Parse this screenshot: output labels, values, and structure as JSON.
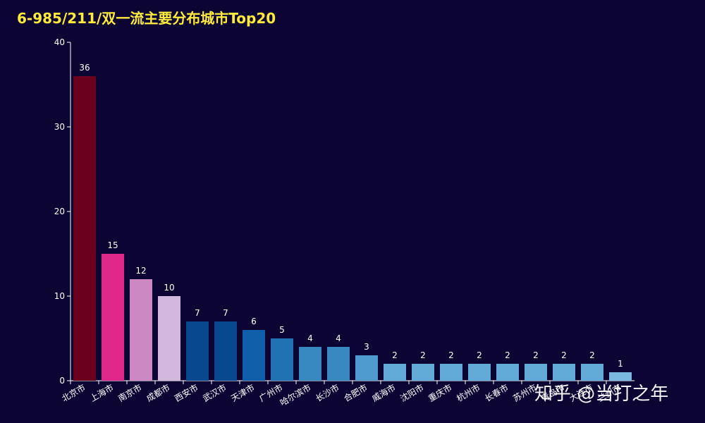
{
  "chart_data": {
    "type": "bar",
    "title": "6-985/211/双一流主要分布城市Top20",
    "xlabel": "",
    "ylabel": "",
    "ylim": [
      0,
      40
    ],
    "yticks": [
      0,
      10,
      20,
      30,
      40
    ],
    "grid": false,
    "legend": "none",
    "categories": [
      "北京市",
      "上海市",
      "南京市",
      "成都市",
      "西安市",
      "武汉市",
      "天津市",
      "广州市",
      "哈尔滨市",
      "长沙市",
      "合肥市",
      "威海市",
      "沈阳市",
      "重庆市",
      "杭州市",
      "长春市",
      "苏州市",
      "青岛市",
      "大连市",
      "兰州市"
    ],
    "values": [
      36,
      15,
      12,
      10,
      7,
      7,
      6,
      5,
      4,
      4,
      3,
      2,
      2,
      2,
      2,
      2,
      2,
      2,
      2,
      1
    ],
    "colors": [
      "#6a001d",
      "#e0288a",
      "#cc88c2",
      "#d4b8dc",
      "#08488e",
      "#08488e",
      "#0f5fab",
      "#2171b5",
      "#3888c2",
      "#3888c2",
      "#4f9bcf",
      "#62aad8",
      "#62aad8",
      "#62aad8",
      "#62aad8",
      "#62aad8",
      "#62aad8",
      "#62aad8",
      "#62aad8",
      "#7ab8e0"
    ]
  },
  "title_color": "#ffeb3b",
  "background_color": "#0c0533",
  "watermark": "知乎 @当打之年"
}
